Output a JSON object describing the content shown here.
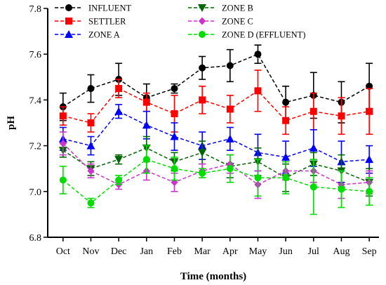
{
  "chart_data": {
    "type": "line",
    "xlabel": "Time (months)",
    "ylabel": "pH",
    "categories": [
      "Oct",
      "Nov",
      "Dec",
      "Jan",
      "Feb",
      "Mar",
      "Apr",
      "May",
      "Jun",
      "Jul",
      "Aug",
      "Sep"
    ],
    "ylim": [
      6.8,
      7.8
    ],
    "yticks": [
      "6.8",
      "7.0",
      "7.2",
      "7.4",
      "7.6",
      "7.8"
    ],
    "legend_position": "top-left",
    "grid": false,
    "series": [
      {
        "name": "INFLUENT",
        "color": "#000000",
        "marker": "circle",
        "values": [
          7.37,
          7.45,
          7.49,
          7.41,
          7.45,
          7.54,
          7.55,
          7.6,
          7.39,
          7.42,
          7.39,
          7.46
        ],
        "errors": [
          0.06,
          0.06,
          0.07,
          0.06,
          0.02,
          0.05,
          0.07,
          0.04,
          0.07,
          0.1,
          0.09,
          0.1
        ]
      },
      {
        "name": "SETTLER",
        "color": "#ff0000",
        "marker": "square",
        "values": [
          7.33,
          7.3,
          7.45,
          7.39,
          7.34,
          7.4,
          7.36,
          7.44,
          7.31,
          7.35,
          7.33,
          7.35
        ],
        "errors": [
          0.04,
          0.04,
          0.04,
          0.04,
          0.08,
          0.06,
          0.06,
          0.09,
          0.06,
          0.08,
          0.08,
          0.1
        ]
      },
      {
        "name": "ZONE A",
        "color": "#0000ff",
        "marker": "triangle-up",
        "values": [
          7.23,
          7.2,
          7.35,
          7.29,
          7.24,
          7.2,
          7.23,
          7.17,
          7.15,
          7.19,
          7.13,
          7.14
        ],
        "errors": [
          0.05,
          0.04,
          0.03,
          0.06,
          0.06,
          0.06,
          0.05,
          0.08,
          0.07,
          0.08,
          0.09,
          0.06
        ]
      },
      {
        "name": "ZONE B",
        "color": "#006400",
        "marker": "triangle-down",
        "values": [
          7.18,
          7.1,
          7.14,
          7.19,
          7.13,
          7.17,
          7.11,
          7.13,
          7.06,
          7.12,
          7.09,
          7.04
        ],
        "errors": [
          0.03,
          0.03,
          0.02,
          0.05,
          0.04,
          0.05,
          0.05,
          0.06,
          0.06,
          0.05,
          0.07,
          0.06
        ]
      },
      {
        "name": "ZONE C",
        "color": "#cc33cc",
        "marker": "diamond",
        "values": [
          7.21,
          7.09,
          7.03,
          7.09,
          7.04,
          7.09,
          7.12,
          7.03,
          7.09,
          7.09,
          7.03,
          7.04
        ],
        "errors": [
          0.05,
          0.03,
          0.02,
          0.04,
          0.04,
          0.03,
          0.04,
          0.06,
          0.04,
          0.05,
          0.06,
          0.05
        ]
      },
      {
        "name": "ZONE D (EFFLUENT)",
        "color": "#00dd00",
        "marker": "circle",
        "values": [
          7.05,
          6.95,
          7.05,
          7.14,
          7.1,
          7.08,
          7.1,
          7.06,
          7.06,
          7.02,
          7.01,
          7.0
        ],
        "errors": [
          0.06,
          0.02,
          0.02,
          0.06,
          0.05,
          0.02,
          0.06,
          0.08,
          0.07,
          0.12,
          0.08,
          0.06
        ]
      }
    ]
  }
}
